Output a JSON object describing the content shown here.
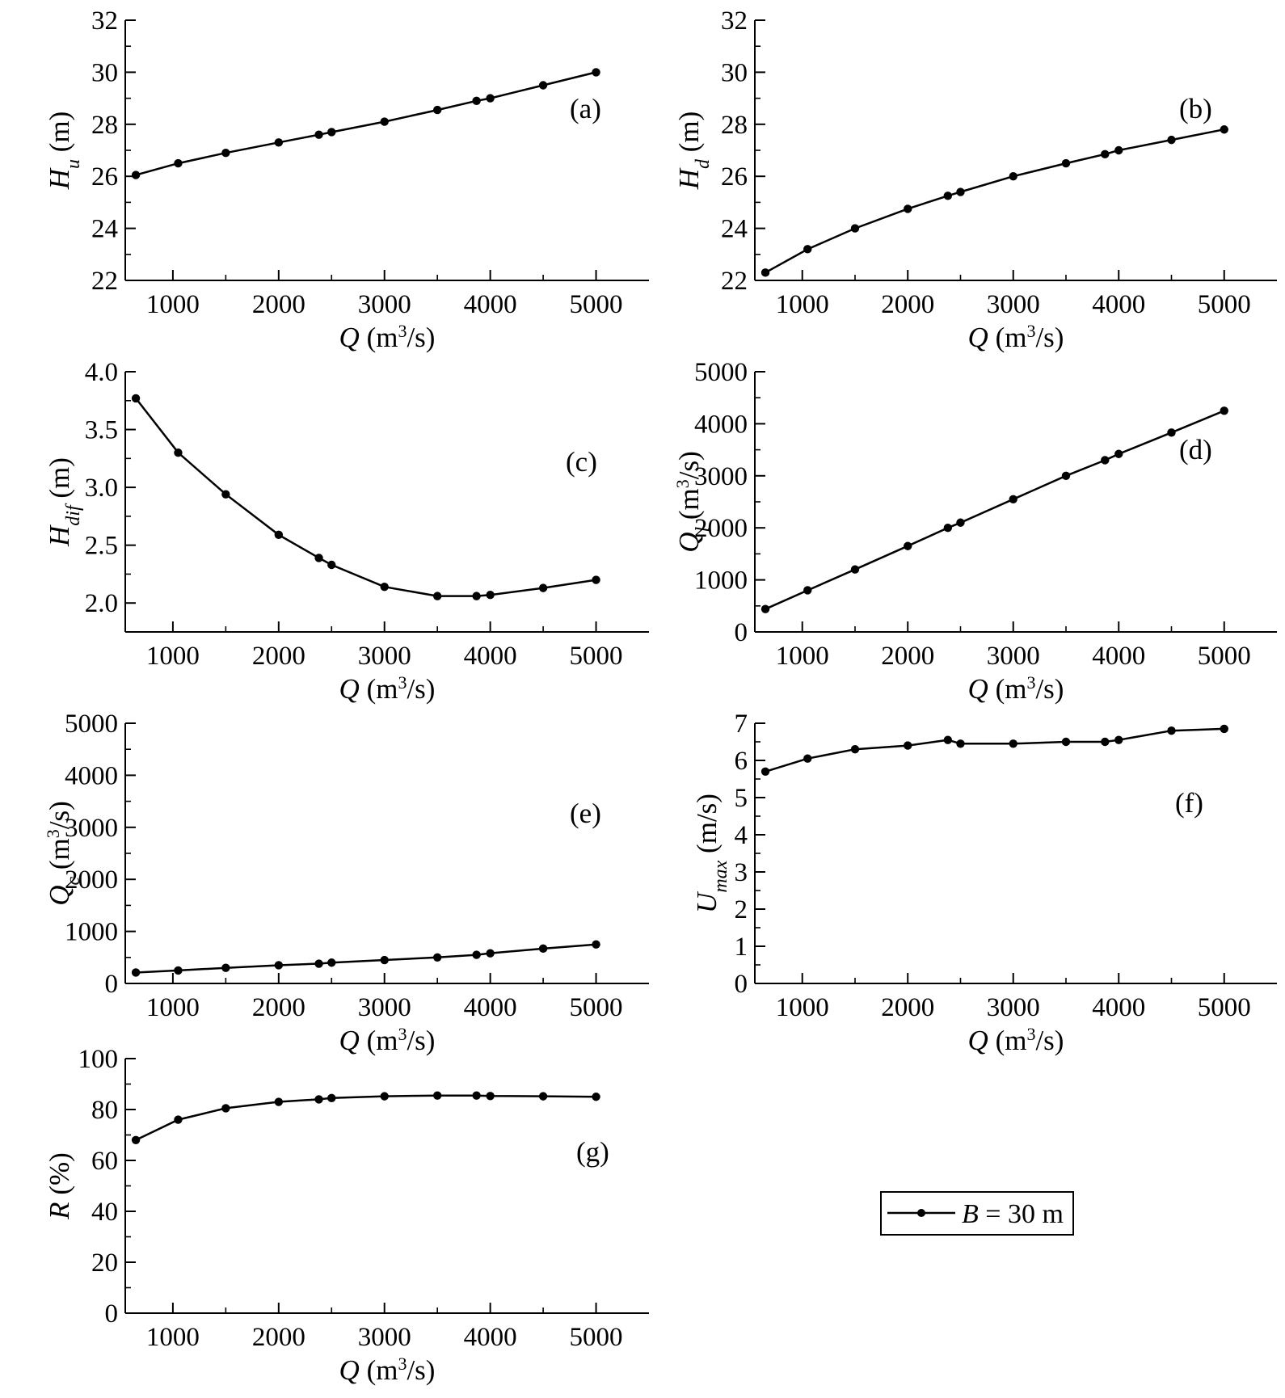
{
  "legend": {
    "label": "B = 30 m",
    "var": "B",
    "rest": " = 30 m",
    "line_color": "#000000"
  },
  "colors": {
    "line": "#000000",
    "marker": "#000000",
    "axis": "#000000"
  },
  "chart_data": [
    {
      "id": "a",
      "type": "line",
      "panel_label": "(a)",
      "xlabel": "Q (m³/s)",
      "ylabel": "H_u (m)",
      "ylabel_var": "H",
      "ylabel_sub": "u",
      "ylabel_unit": " (m)",
      "ylabel_sup": "",
      "xlabel_var": "Q",
      "xlabel_unit": " (m",
      "xlabel_sup": "3",
      "xlabel_tail": "/s)",
      "xlim": [
        550,
        5500
      ],
      "ylim": [
        22,
        32
      ],
      "xticks": [
        1000,
        2000,
        3000,
        4000,
        5000
      ],
      "xminor": [],
      "yticks": [
        22,
        24,
        26,
        28,
        30,
        32
      ],
      "yminor": [
        23,
        25,
        27,
        29,
        31
      ],
      "ytick_labels": [
        "22",
        "24",
        "26",
        "28",
        "30",
        "32"
      ],
      "xtick_labels": [
        "1000",
        "2000",
        "3000",
        "4000",
        "5000"
      ],
      "series": [
        {
          "name": "B = 30 m",
          "x": [
            650,
            1050,
            1500,
            2000,
            2380,
            2500,
            3000,
            3500,
            3870,
            4000,
            4500,
            5000
          ],
          "y": [
            26.05,
            26.5,
            26.9,
            27.3,
            27.6,
            27.7,
            28.1,
            28.55,
            28.9,
            29.0,
            29.5,
            30.0
          ]
        }
      ]
    },
    {
      "id": "b",
      "type": "line",
      "panel_label": "(b)",
      "xlabel": "Q (m³/s)",
      "ylabel": "H_d (m)",
      "ylabel_var": "H",
      "ylabel_sub": "d",
      "ylabel_unit": " (m)",
      "ylabel_sup": "",
      "xlabel_var": "Q",
      "xlabel_unit": " (m",
      "xlabel_sup": "3",
      "xlabel_tail": "/s)",
      "xlim": [
        550,
        5500
      ],
      "ylim": [
        22,
        32
      ],
      "xticks": [
        1000,
        2000,
        3000,
        4000,
        5000
      ],
      "xminor": [],
      "yticks": [
        22,
        24,
        26,
        28,
        30,
        32
      ],
      "yminor": [
        23,
        25,
        27,
        29,
        31
      ],
      "ytick_labels": [
        "22",
        "24",
        "26",
        "28",
        "30",
        "32"
      ],
      "xtick_labels": [
        "1000",
        "2000",
        "3000",
        "4000",
        "5000"
      ],
      "series": [
        {
          "name": "B = 30 m",
          "x": [
            650,
            1050,
            1500,
            2000,
            2380,
            2500,
            3000,
            3500,
            3870,
            4000,
            4500,
            5000
          ],
          "y": [
            22.3,
            23.2,
            24.0,
            24.75,
            25.25,
            25.4,
            26.0,
            26.5,
            26.85,
            27.0,
            27.4,
            27.8
          ]
        }
      ]
    },
    {
      "id": "c",
      "type": "line",
      "panel_label": "(c)",
      "xlabel": "Q (m³/s)",
      "ylabel": "H_dif (m)",
      "ylabel_var": "H",
      "ylabel_sub": "dif",
      "ylabel_unit": " (m)",
      "ylabel_sup": "",
      "xlabel_var": "Q",
      "xlabel_unit": " (m",
      "xlabel_sup": "3",
      "xlabel_tail": "/s)",
      "xlim": [
        550,
        5500
      ],
      "ylim": [
        1.75,
        4.0
      ],
      "xticks": [
        1000,
        2000,
        3000,
        4000,
        5000
      ],
      "xminor": [],
      "yticks": [
        2.0,
        2.5,
        3.0,
        3.5,
        4.0
      ],
      "yminor": [
        2.25,
        2.75,
        3.25,
        3.75
      ],
      "ytick_labels": [
        "2.0",
        "2.5",
        "3.0",
        "3.5",
        "4.0"
      ],
      "xtick_labels": [
        "1000",
        "2000",
        "3000",
        "4000",
        "5000"
      ],
      "series": [
        {
          "name": "B = 30 m",
          "x": [
            650,
            1050,
            1500,
            2000,
            2380,
            2500,
            3000,
            3500,
            3870,
            4000,
            4500,
            5000
          ],
          "y": [
            3.77,
            3.3,
            2.94,
            2.59,
            2.39,
            2.33,
            2.14,
            2.06,
            2.06,
            2.07,
            2.13,
            2.2
          ]
        }
      ]
    },
    {
      "id": "d",
      "type": "line",
      "panel_label": "(d)",
      "xlabel": "Q (m³/s)",
      "ylabel": "Q_l (m³/s)",
      "ylabel_var": "Q",
      "ylabel_sub": "l",
      "ylabel_unit": " (m",
      "ylabel_sup": "3",
      "ylabel_tail": "/s)",
      "xlabel_var": "Q",
      "xlabel_unit": " (m",
      "xlabel_sup": "3",
      "xlabel_tail": "/s)",
      "xlim": [
        550,
        5500
      ],
      "ylim": [
        0,
        5000
      ],
      "xticks": [
        1000,
        2000,
        3000,
        4000,
        5000
      ],
      "xminor": [],
      "yticks": [
        0,
        1000,
        2000,
        3000,
        4000,
        5000
      ],
      "yminor": [
        500,
        1500,
        2500,
        3500,
        4500
      ],
      "ytick_labels": [
        "0",
        "1000",
        "2000",
        "3000",
        "4000",
        "5000"
      ],
      "xtick_labels": [
        "1000",
        "2000",
        "3000",
        "4000",
        "5000"
      ],
      "series": [
        {
          "name": "B = 30 m",
          "x": [
            650,
            1050,
            1500,
            2000,
            2380,
            2500,
            3000,
            3500,
            3870,
            4000,
            4500,
            5000
          ],
          "y": [
            440,
            800,
            1200,
            1650,
            2000,
            2100,
            2550,
            3000,
            3300,
            3420,
            3830,
            4250
          ]
        }
      ]
    },
    {
      "id": "e",
      "type": "line",
      "panel_label": "(e)",
      "xlabel": "Q (m³/s)",
      "ylabel": "Q_c (m³/s)",
      "ylabel_var": "Q",
      "ylabel_sub": "c",
      "ylabel_unit": " (m",
      "ylabel_sup": "3",
      "ylabel_tail": "/s)",
      "xlabel_var": "Q",
      "xlabel_unit": " (m",
      "xlabel_sup": "3",
      "xlabel_tail": "/s)",
      "xlim": [
        550,
        5500
      ],
      "ylim": [
        0,
        5000
      ],
      "xticks": [
        1000,
        2000,
        3000,
        4000,
        5000
      ],
      "xminor": [],
      "yticks": [
        0,
        1000,
        2000,
        3000,
        4000,
        5000
      ],
      "yminor": [
        500,
        1500,
        2500,
        3500,
        4500
      ],
      "ytick_labels": [
        "0",
        "1000",
        "2000",
        "3000",
        "4000",
        "5000"
      ],
      "xtick_labels": [
        "1000",
        "2000",
        "3000",
        "4000",
        "5000"
      ],
      "series": [
        {
          "name": "B = 30 m",
          "x": [
            650,
            1050,
            1500,
            2000,
            2380,
            2500,
            3000,
            3500,
            3870,
            4000,
            4500,
            5000
          ],
          "y": [
            210,
            250,
            300,
            350,
            380,
            400,
            450,
            500,
            550,
            580,
            670,
            750
          ]
        }
      ]
    },
    {
      "id": "f",
      "type": "line",
      "panel_label": "(f)",
      "xlabel": "Q (m³/s)",
      "ylabel": "U_max (m/s)",
      "ylabel_var": "U",
      "ylabel_sub": "max",
      "ylabel_unit": " (m/s)",
      "ylabel_sup": "",
      "xlabel_var": "Q",
      "xlabel_unit": " (m",
      "xlabel_sup": "3",
      "xlabel_tail": "/s)",
      "xlim": [
        550,
        5500
      ],
      "ylim": [
        0,
        7
      ],
      "xticks": [
        1000,
        2000,
        3000,
        4000,
        5000
      ],
      "xminor": [],
      "yticks": [
        0,
        1,
        2,
        3,
        4,
        5,
        6,
        7
      ],
      "yminor": [
        0.5,
        1.5,
        2.5,
        3.5,
        4.5,
        5.5,
        6.5
      ],
      "ytick_labels": [
        "0",
        "1",
        "2",
        "3",
        "4",
        "5",
        "6",
        "7"
      ],
      "xtick_labels": [
        "1000",
        "2000",
        "3000",
        "4000",
        "5000"
      ],
      "series": [
        {
          "name": "B = 30 m",
          "x": [
            650,
            1050,
            1500,
            2000,
            2380,
            2500,
            3000,
            3500,
            3870,
            4000,
            4500,
            5000
          ],
          "y": [
            5.7,
            6.05,
            6.3,
            6.4,
            6.55,
            6.45,
            6.45,
            6.5,
            6.5,
            6.55,
            6.8,
            6.85
          ]
        }
      ]
    },
    {
      "id": "g",
      "type": "line",
      "panel_label": "(g)",
      "xlabel": "Q (m³/s)",
      "ylabel": "R (%)",
      "ylabel_var": "R",
      "ylabel_sub": "",
      "ylabel_unit": " (%)",
      "ylabel_sup": "",
      "xlabel_var": "Q",
      "xlabel_unit": " (m",
      "xlabel_sup": "3",
      "xlabel_tail": "/s)",
      "xlim": [
        550,
        5500
      ],
      "ylim": [
        0,
        100
      ],
      "xticks": [
        1000,
        2000,
        3000,
        4000,
        5000
      ],
      "xminor": [],
      "yticks": [
        0,
        20,
        40,
        60,
        80,
        100
      ],
      "yminor": [
        10,
        30,
        50,
        70,
        90
      ],
      "ytick_labels": [
        "0",
        "20",
        "40",
        "60",
        "80",
        "100"
      ],
      "xtick_labels": [
        "1000",
        "2000",
        "3000",
        "4000",
        "5000"
      ],
      "series": [
        {
          "name": "B = 30 m",
          "x": [
            650,
            1050,
            1500,
            2000,
            2380,
            2500,
            3000,
            3500,
            3870,
            4000,
            4500,
            5000
          ],
          "y": [
            68,
            76,
            80.5,
            83,
            84,
            84.5,
            85.2,
            85.5,
            85.5,
            85.3,
            85.2,
            85.0
          ]
        }
      ]
    }
  ]
}
